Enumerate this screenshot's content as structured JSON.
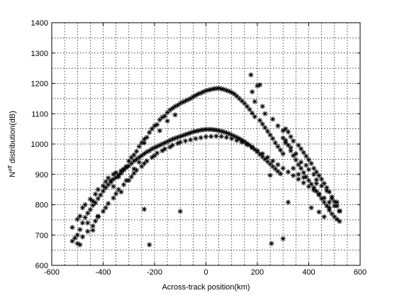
{
  "chart_data": {
    "type": "scatter",
    "title": "",
    "xlabel": "Across-track position(km)",
    "ylabel_base": "N",
    "ylabel_sup": "eff",
    "ylabel_rest": " distribution(dB)",
    "xlim": [
      -600,
      600
    ],
    "ylim": [
      600,
      1400
    ],
    "x_major_ticks": [
      -600,
      -400,
      -200,
      0,
      200,
      400,
      600
    ],
    "x_minor_step": 50,
    "y_ticks": [
      600,
      700,
      800,
      900,
      1000,
      1100,
      1200,
      1300,
      1400
    ],
    "y_grid_step": 50,
    "grid": true,
    "grid_style": "dotted",
    "marker": "asterisk",
    "marker_color": "#000000",
    "series": [
      {
        "points": [
          [
            -520,
            725
          ],
          [
            -500,
            752
          ],
          [
            -490,
            762
          ],
          [
            -480,
            790
          ],
          [
            -470,
            800
          ],
          [
            -450,
            818
          ],
          [
            -440,
            812
          ],
          [
            -430,
            835
          ],
          [
            -420,
            850
          ],
          [
            -400,
            862
          ],
          [
            -390,
            876
          ],
          [
            -380,
            888
          ],
          [
            -370,
            880
          ],
          [
            -360,
            900
          ],
          [
            -350,
            906
          ],
          [
            -340,
            892
          ],
          [
            -330,
            912
          ],
          [
            -320,
            918
          ],
          [
            -310,
            926
          ],
          [
            -300,
            944
          ],
          [
            -290,
            956
          ],
          [
            -280,
            964
          ],
          [
            -270,
            976
          ],
          [
            -260,
            992
          ],
          [
            -250,
            1004
          ],
          [
            -240,
            1016
          ],
          [
            -230,
            1022
          ],
          [
            -220,
            1038
          ],
          [
            -210,
            1050
          ],
          [
            -200,
            1060
          ],
          [
            -190,
            1064
          ],
          [
            -180,
            1080
          ],
          [
            -170,
            1088
          ],
          [
            -160,
            1092
          ],
          [
            -150,
            1104
          ],
          [
            -140,
            1112
          ],
          [
            -130,
            1118
          ],
          [
            -120,
            1124
          ],
          [
            -110,
            1128
          ],
          [
            -100,
            1134
          ],
          [
            -90,
            1138
          ],
          [
            -80,
            1142
          ],
          [
            -70,
            1146
          ],
          [
            -60,
            1150
          ],
          [
            -50,
            1156
          ],
          [
            -40,
            1160
          ],
          [
            -30,
            1165
          ],
          [
            -20,
            1168
          ],
          [
            -10,
            1172
          ],
          [
            0,
            1176
          ],
          [
            10,
            1178
          ],
          [
            20,
            1180
          ],
          [
            30,
            1182
          ],
          [
            40,
            1183
          ],
          [
            50,
            1184
          ],
          [
            60,
            1182
          ],
          [
            70,
            1180
          ],
          [
            80,
            1177
          ],
          [
            90,
            1174
          ],
          [
            100,
            1170
          ],
          [
            110,
            1165
          ],
          [
            120,
            1158
          ],
          [
            130,
            1150
          ],
          [
            140,
            1142
          ],
          [
            150,
            1134
          ],
          [
            160,
            1124
          ],
          [
            170,
            1114
          ],
          [
            180,
            1102
          ],
          [
            190,
            1090
          ],
          [
            200,
            1192
          ],
          [
            210,
            1078
          ],
          [
            220,
            1066
          ],
          [
            230,
            1054
          ],
          [
            240,
            1042
          ],
          [
            250,
            1030
          ],
          [
            260,
            1018
          ],
          [
            270,
            1004
          ],
          [
            280,
            992
          ],
          [
            290,
            980
          ],
          [
            300,
            968
          ],
          [
            310,
            1050
          ],
          [
            320,
            1040
          ],
          [
            330,
            1024
          ],
          [
            340,
            1010
          ],
          [
            360,
            996
          ],
          [
            370,
            984
          ],
          [
            380,
            972
          ],
          [
            390,
            960
          ],
          [
            400,
            948
          ],
          [
            410,
            936
          ],
          [
            420,
            920
          ],
          [
            430,
            908
          ],
          [
            440,
            896
          ],
          [
            450,
            884
          ],
          [
            460,
            870
          ],
          [
            470,
            856
          ],
          [
            480,
            842
          ],
          [
            490,
            826
          ],
          [
            500,
            810
          ],
          [
            510,
            796
          ],
          [
            520,
            780
          ]
        ]
      },
      {
        "points": [
          [
            -520,
            680
          ],
          [
            -500,
            700
          ],
          [
            -490,
            718
          ],
          [
            -480,
            740
          ],
          [
            -470,
            758
          ],
          [
            -460,
            772
          ],
          [
            -450,
            784
          ],
          [
            -440,
            798
          ],
          [
            -430,
            806
          ],
          [
            -420,
            820
          ],
          [
            -410,
            832
          ],
          [
            -400,
            845
          ],
          [
            -390,
            856
          ],
          [
            -380,
            866
          ],
          [
            -370,
            874
          ],
          [
            -360,
            884
          ],
          [
            -350,
            890
          ],
          [
            -340,
            898
          ],
          [
            -330,
            904
          ],
          [
            -320,
            914
          ],
          [
            -310,
            922
          ],
          [
            -300,
            928
          ],
          [
            -290,
            936
          ],
          [
            -280,
            944
          ],
          [
            -270,
            950
          ],
          [
            -260,
            956
          ],
          [
            -250,
            962
          ],
          [
            -240,
            968
          ],
          [
            -230,
            974
          ],
          [
            -220,
            978
          ],
          [
            -210,
            984
          ],
          [
            -200,
            988
          ],
          [
            -190,
            992
          ],
          [
            -180,
            996
          ],
          [
            -170,
            1000
          ],
          [
            -160,
            1004
          ],
          [
            -150,
            1008
          ],
          [
            -140,
            1012
          ],
          [
            -130,
            1016
          ],
          [
            -120,
            1019
          ],
          [
            -110,
            1022
          ],
          [
            -100,
            1025
          ],
          [
            -90,
            1028
          ],
          [
            -80,
            1031
          ],
          [
            -70,
            1034
          ],
          [
            -60,
            1037
          ],
          [
            -50,
            1040
          ],
          [
            -40,
            1042
          ],
          [
            -30,
            1044
          ],
          [
            -20,
            1046
          ],
          [
            -10,
            1047
          ],
          [
            0,
            1048
          ],
          [
            10,
            1048
          ],
          [
            20,
            1048
          ],
          [
            30,
            1047
          ],
          [
            40,
            1046
          ],
          [
            50,
            1044
          ],
          [
            60,
            1042
          ],
          [
            70,
            1040
          ],
          [
            80,
            1037
          ],
          [
            90,
            1034
          ],
          [
            100,
            1030
          ],
          [
            110,
            1026
          ],
          [
            120,
            1022
          ],
          [
            130,
            1018
          ],
          [
            140,
            1013
          ],
          [
            150,
            1008
          ],
          [
            160,
            1002
          ],
          [
            170,
            996
          ],
          [
            180,
            990
          ],
          [
            190,
            982
          ],
          [
            200,
            974
          ],
          [
            210,
            966
          ],
          [
            220,
            958
          ],
          [
            230,
            950
          ],
          [
            240,
            942
          ],
          [
            250,
            934
          ],
          [
            260,
            926
          ],
          [
            270,
            918
          ],
          [
            280,
            910
          ],
          [
            290,
            902
          ],
          [
            300,
            1020
          ],
          [
            310,
            1012
          ],
          [
            320,
            996
          ],
          [
            330,
            978
          ],
          [
            340,
            962
          ],
          [
            350,
            948
          ],
          [
            360,
            932
          ],
          [
            370,
            920
          ],
          [
            380,
            906
          ],
          [
            390,
            892
          ],
          [
            400,
            880
          ],
          [
            410,
            868
          ],
          [
            420,
            856
          ],
          [
            430,
            844
          ],
          [
            440,
            832
          ],
          [
            450,
            820
          ],
          [
            460,
            808
          ],
          [
            470,
            796
          ],
          [
            480,
            782
          ],
          [
            490,
            770
          ],
          [
            500,
            760
          ],
          [
            510,
            752
          ],
          [
            520,
            745
          ]
        ]
      },
      {
        "points": [
          [
            -500,
            672
          ],
          [
            -480,
            694
          ],
          [
            -460,
            712
          ],
          [
            -440,
            730
          ],
          [
            -430,
            746
          ],
          [
            -420,
            760
          ],
          [
            -400,
            778
          ],
          [
            -390,
            790
          ],
          [
            -380,
            804
          ],
          [
            -360,
            822
          ],
          [
            -350,
            836
          ],
          [
            -340,
            850
          ],
          [
            -320,
            866
          ],
          [
            -300,
            880
          ],
          [
            -290,
            892
          ],
          [
            -280,
            904
          ],
          [
            -270,
            914
          ],
          [
            -250,
            926
          ],
          [
            -240,
            936
          ],
          [
            -230,
            944
          ],
          [
            -210,
            956
          ],
          [
            -200,
            962
          ],
          [
            -190,
            970
          ],
          [
            -170,
            978
          ],
          [
            -160,
            984
          ],
          [
            -140,
            990
          ],
          [
            -130,
            996
          ],
          [
            -110,
            1002
          ],
          [
            -100,
            1006
          ],
          [
            -80,
            1010
          ],
          [
            -60,
            1014
          ],
          [
            -40,
            1018
          ],
          [
            -20,
            1021
          ],
          [
            0,
            1024
          ],
          [
            20,
            1025
          ],
          [
            40,
            1026
          ],
          [
            60,
            1025
          ],
          [
            80,
            1022
          ],
          [
            100,
            1018
          ],
          [
            120,
            1012
          ],
          [
            140,
            1006
          ],
          [
            160,
            998
          ],
          [
            180,
            988
          ],
          [
            200,
            978
          ],
          [
            220,
            968
          ],
          [
            240,
            956
          ],
          [
            260,
            944
          ],
          [
            280,
            932
          ],
          [
            300,
            920
          ],
          [
            320,
            908
          ],
          [
            340,
            896
          ],
          [
            360,
            884
          ],
          [
            380,
            872
          ],
          [
            400,
            860
          ],
          [
            420,
            848
          ],
          [
            440,
            836
          ],
          [
            460,
            822
          ],
          [
            480,
            808
          ],
          [
            500,
            796
          ],
          [
            520,
            778
          ]
        ]
      },
      {
        "points": [
          [
            -240,
            785
          ],
          [
            -220,
            668
          ],
          [
            -100,
            778
          ],
          [
            175,
            1228
          ],
          [
            210,
            1195
          ],
          [
            250,
            897
          ],
          [
            255,
            672
          ],
          [
            300,
            688
          ],
          [
            320,
            808
          ],
          [
            410,
            790
          ],
          [
            440,
            776
          ],
          [
            460,
            760
          ],
          [
            480,
            790
          ],
          [
            -510,
            690
          ],
          [
            -490,
            668
          ],
          [
            -460,
            740
          ],
          [
            -440,
            716
          ],
          [
            -420,
            762
          ],
          [
            -360,
            860
          ],
          [
            -330,
            842
          ],
          [
            -310,
            880
          ],
          [
            -280,
            918
          ],
          [
            -260,
            940
          ],
          [
            -240,
            1004
          ],
          [
            -180,
            1044
          ],
          [
            -150,
            1076
          ],
          [
            -120,
            1096
          ],
          [
            180,
            1172
          ],
          [
            190,
            1140
          ],
          [
            220,
            1124
          ],
          [
            230,
            1100
          ],
          [
            260,
            1082
          ],
          [
            280,
            1060
          ],
          [
            300,
            1044
          ],
          [
            310,
            1004
          ],
          [
            330,
            988
          ],
          [
            350,
            968
          ],
          [
            370,
            940
          ],
          [
            390,
            930
          ],
          [
            400,
            916
          ],
          [
            420,
            900
          ],
          [
            430,
            882
          ],
          [
            450,
            862
          ],
          [
            470,
            846
          ],
          [
            490,
            820
          ],
          [
            510,
            808
          ],
          [
            340,
            920
          ],
          [
            360,
            900
          ],
          [
            380,
            890
          ],
          [
            430,
            870
          ]
        ]
      }
    ]
  }
}
